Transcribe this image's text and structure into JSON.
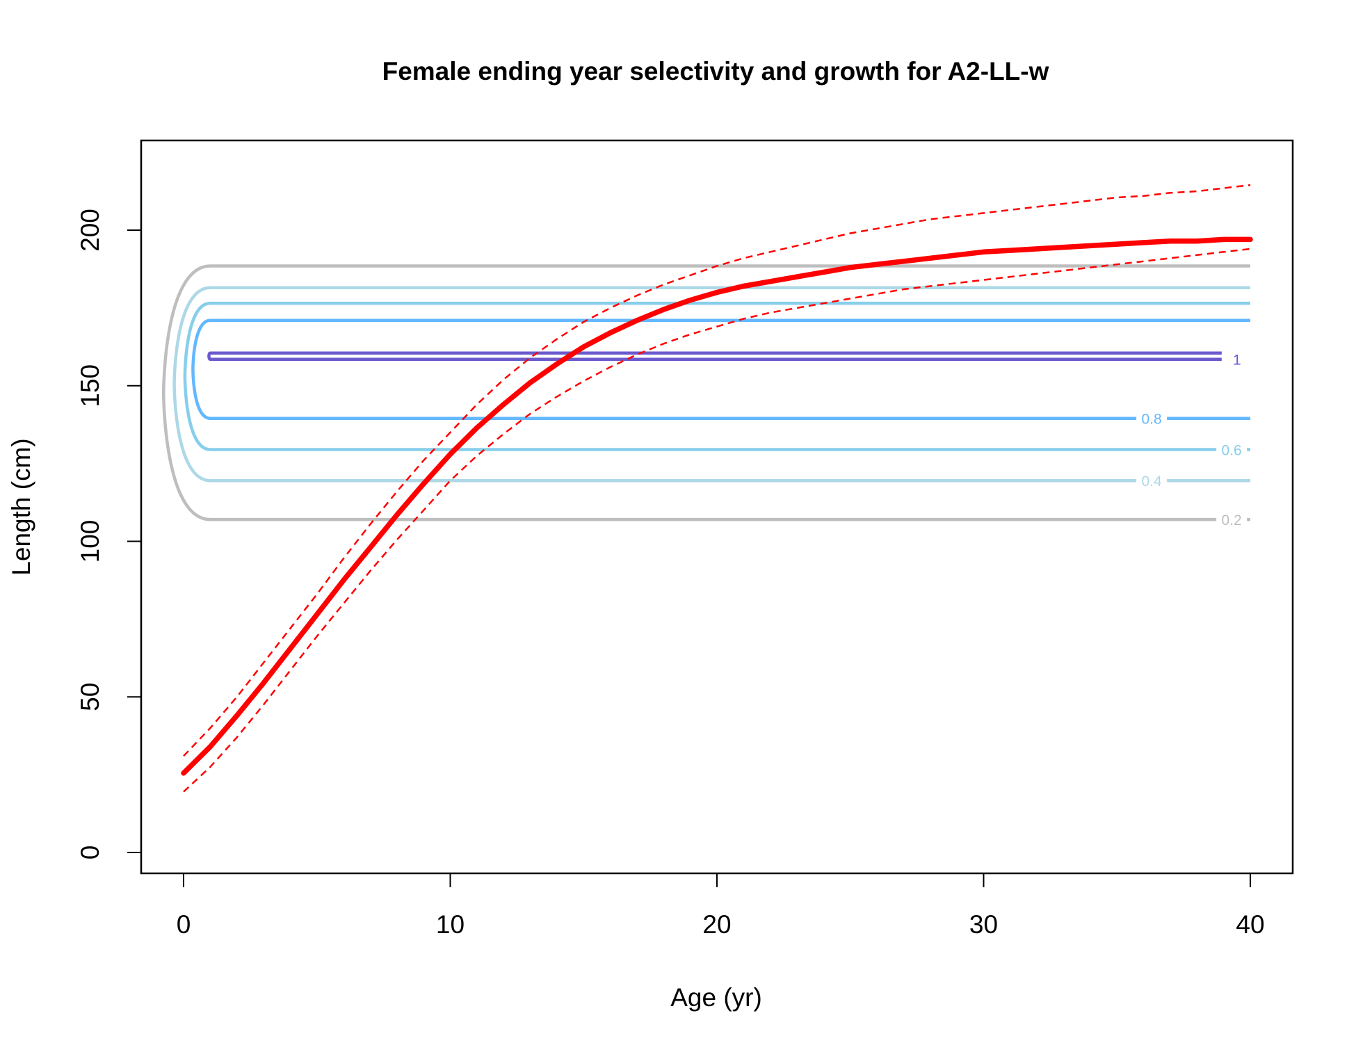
{
  "chart_data": {
    "type": "line",
    "title": "Female ending year selectivity and growth for A2-LL-w",
    "xlabel": "Age (yr)",
    "ylabel": "Length (cm)",
    "xlim": [
      -1.6,
      41.6
    ],
    "ylim": [
      -7,
      229
    ],
    "x_ticks": [
      0,
      10,
      20,
      30,
      40
    ],
    "y_ticks": [
      0,
      50,
      100,
      150,
      200
    ],
    "grid": false,
    "legend": "none",
    "growth": {
      "color": "#ff0000",
      "age": [
        0,
        1,
        2,
        3,
        4,
        5,
        6,
        7,
        8,
        9,
        10,
        11,
        12,
        13,
        14,
        15,
        16,
        17,
        18,
        19,
        20,
        21,
        22,
        23,
        24,
        25,
        26,
        27,
        28,
        29,
        30,
        31,
        32,
        33,
        34,
        35,
        36,
        37,
        38,
        39,
        40
      ],
      "mean": [
        25.5,
        34,
        44,
        54.5,
        65.5,
        76.5,
        87.5,
        98,
        108.5,
        118.5,
        128,
        136.5,
        144,
        151,
        157,
        162.5,
        167,
        171,
        174.5,
        177.5,
        180,
        182,
        183.5,
        185,
        186.5,
        188,
        189,
        190,
        191,
        192,
        193,
        193.5,
        194,
        194.5,
        195,
        195.5,
        196,
        196.5,
        196.5,
        197,
        197
      ],
      "upper": [
        31,
        40,
        50,
        61,
        72,
        83,
        94.5,
        105.5,
        116,
        126,
        135,
        144,
        152,
        159,
        165,
        170.5,
        175,
        179,
        182.5,
        185.5,
        188.5,
        191,
        193,
        195,
        197,
        199,
        200.5,
        202,
        203.5,
        204.5,
        205.5,
        206.5,
        207.5,
        208.5,
        209.5,
        210.5,
        211,
        212,
        212.5,
        213.5,
        214.5
      ],
      "lower": [
        19.5,
        27.5,
        37,
        47.5,
        58.5,
        69.5,
        80,
        90.5,
        100.5,
        110,
        119.5,
        127.5,
        134.5,
        141,
        146.5,
        151.5,
        156,
        160,
        163.5,
        166.5,
        169,
        171.5,
        173.5,
        175,
        176.5,
        178,
        179.5,
        181,
        182,
        183,
        184,
        185,
        186,
        187,
        188,
        189,
        190,
        191,
        192,
        193,
        194
      ]
    },
    "selectivity_contours": [
      {
        "level": "0.2",
        "color": "#bebebe",
        "upper_length": 188.5,
        "lower_length": 107,
        "label_age": 39.3
      },
      {
        "level": "0.4",
        "color": "#add8e6",
        "upper_length": 181.5,
        "lower_length": 119.5,
        "label_age": 36.3
      },
      {
        "level": "0.6",
        "color": "#87ceeb",
        "upper_length": 176.5,
        "lower_length": 129.5,
        "label_age": 39.3
      },
      {
        "level": "0.8",
        "color": "#63b8ff",
        "upper_length": 171,
        "lower_length": 139.5,
        "label_age": 36.3
      },
      {
        "level": "1",
        "color": "#6a5acd",
        "upper_length": 160.5,
        "lower_length": 158.5,
        "label_age": 39.5
      }
    ]
  }
}
